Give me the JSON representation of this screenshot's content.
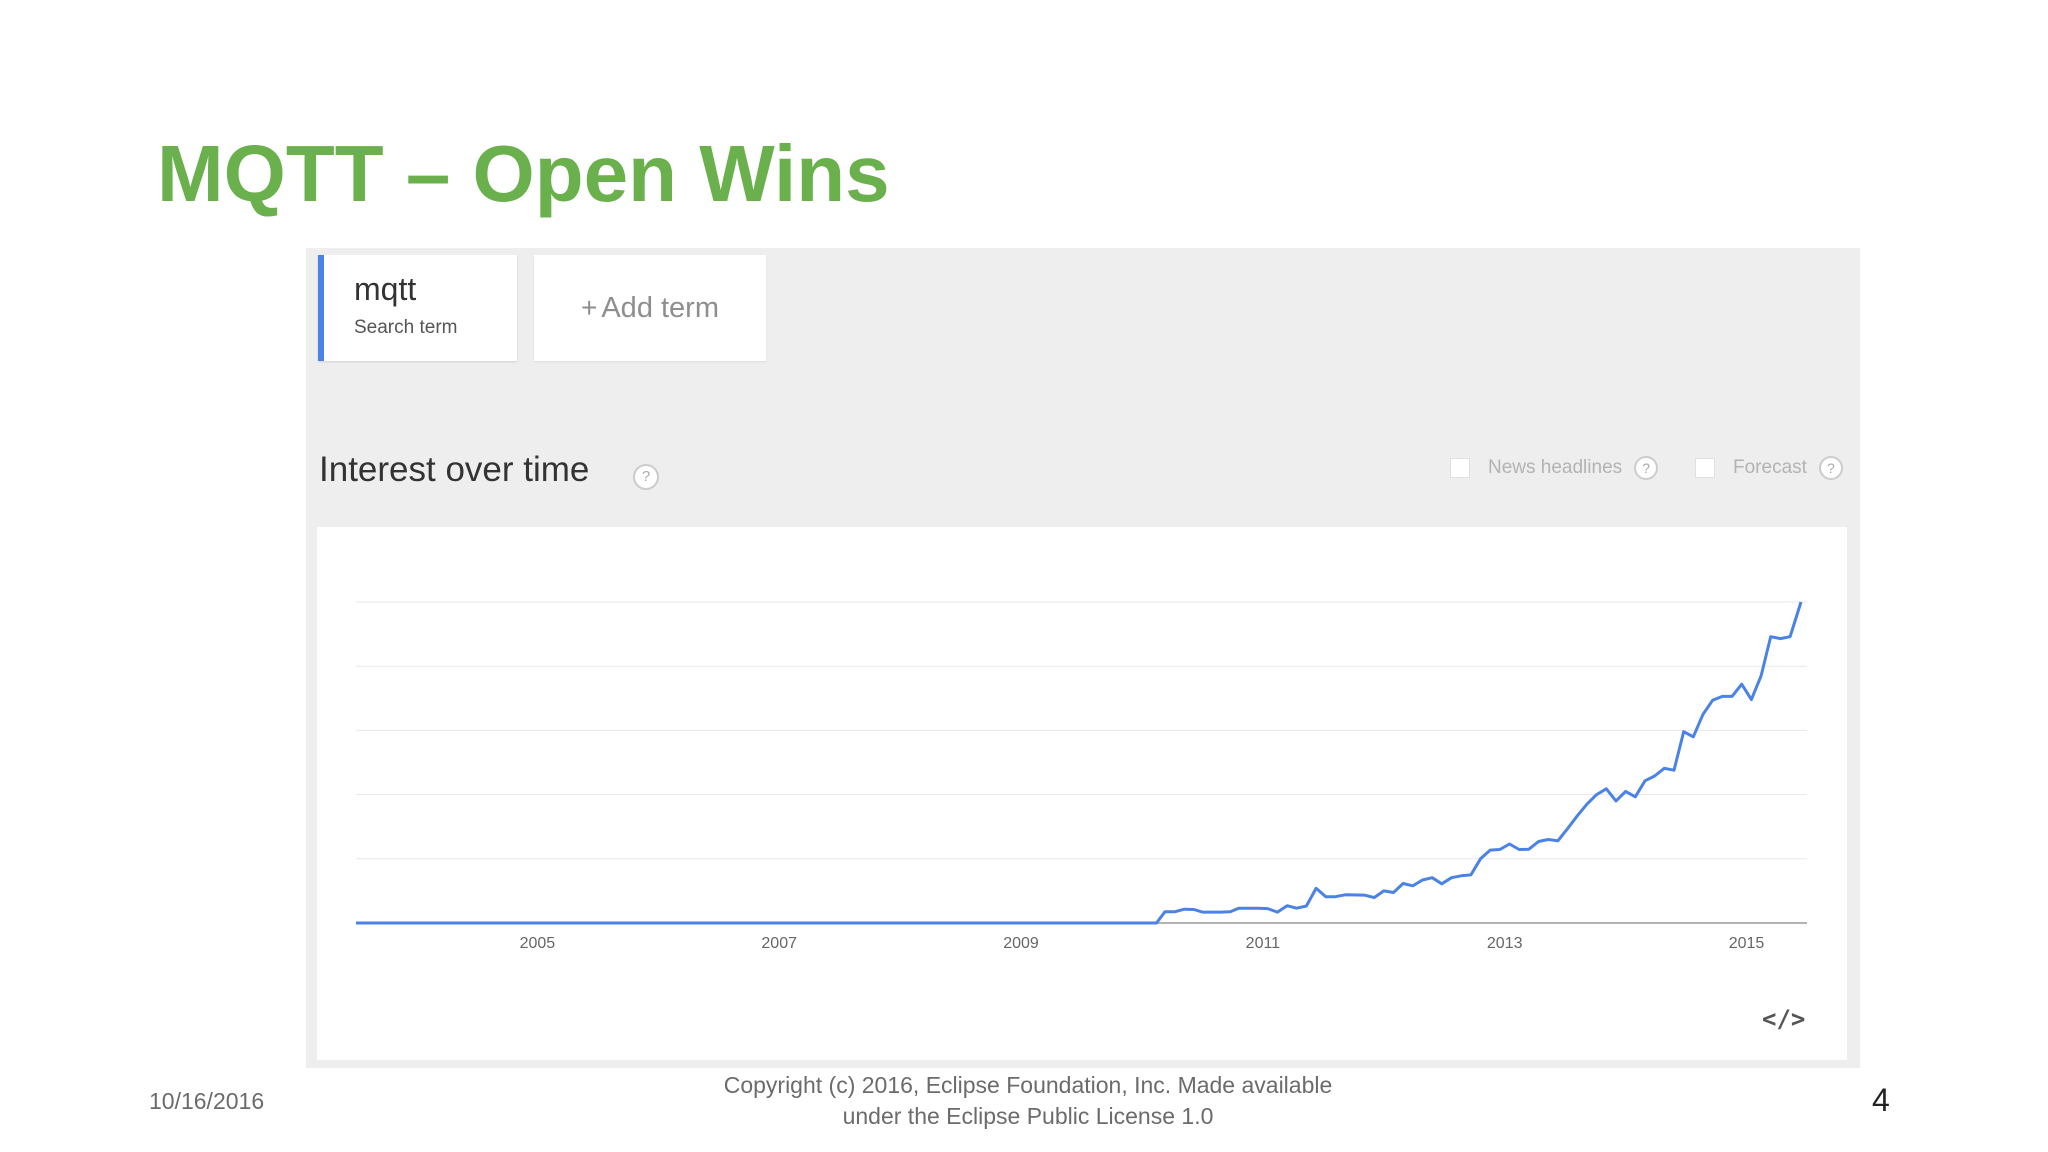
{
  "slide": {
    "title": "MQTT – Open Wins",
    "date": "10/16/2016",
    "copyright_line1": "Copyright (c) 2016, Eclipse Foundation, Inc. Made available",
    "copyright_line2": "under the Eclipse Public License 1.0",
    "page_number": "4"
  },
  "terms": {
    "primary": {
      "name": "mqtt",
      "subtitle": "Search term",
      "color": "#4a82e6"
    },
    "add_plus": "+",
    "add_label": "Add term"
  },
  "section": {
    "title": "Interest over time",
    "help_glyph": "?",
    "options": [
      {
        "label": "News headlines",
        "checked": false
      },
      {
        "label": "Forecast",
        "checked": false
      }
    ]
  },
  "embed": {
    "glyph": "</>",
    "icon": "embed-code-icon"
  },
  "colors": {
    "title": "#6ab04c",
    "line": "#4a82e6"
  },
  "chart_data": {
    "type": "line",
    "title": "",
    "xlabel": "",
    "ylabel": "",
    "x_ticks": [
      "2005",
      "2007",
      "2009",
      "2011",
      "2013",
      "2015"
    ],
    "xlim": [
      2004.0,
      2016.0
    ],
    "ylim": [
      0,
      100
    ],
    "grid": true,
    "legend": "none",
    "series": [
      {
        "values": [
          [
            2004.0,
            0
          ],
          [
            2010.62,
            0
          ],
          [
            2010.69,
            3.5
          ],
          [
            2010.77,
            3.5
          ],
          [
            2010.85,
            4.3
          ],
          [
            2010.93,
            4.2
          ],
          [
            2011.0,
            3.4
          ],
          [
            2011.15,
            3.4
          ],
          [
            2011.23,
            3.5
          ],
          [
            2011.3,
            4.6
          ],
          [
            2011.46,
            4.6
          ],
          [
            2011.54,
            4.5
          ],
          [
            2011.62,
            3.4
          ],
          [
            2011.7,
            5.4
          ],
          [
            2011.78,
            4.6
          ],
          [
            2011.86,
            5.3
          ],
          [
            2011.94,
            10.8
          ],
          [
            2012.02,
            8.2
          ],
          [
            2012.1,
            8.2
          ],
          [
            2012.18,
            8.8
          ],
          [
            2012.34,
            8.7
          ],
          [
            2012.42,
            7.9
          ],
          [
            2012.5,
            10.0
          ],
          [
            2012.58,
            9.5
          ],
          [
            2012.66,
            12.3
          ],
          [
            2012.74,
            11.6
          ],
          [
            2012.82,
            13.4
          ],
          [
            2012.9,
            14.1
          ],
          [
            2012.98,
            12.2
          ],
          [
            2013.06,
            14.1
          ],
          [
            2013.14,
            14.7
          ],
          [
            2013.22,
            15.0
          ],
          [
            2013.3,
            20.0
          ],
          [
            2013.38,
            22.7
          ],
          [
            2013.46,
            22.9
          ],
          [
            2013.54,
            24.6
          ],
          [
            2013.62,
            22.9
          ],
          [
            2013.7,
            23.0
          ],
          [
            2013.78,
            25.4
          ],
          [
            2013.86,
            26.0
          ],
          [
            2013.94,
            25.6
          ],
          [
            2014.02,
            29.4
          ],
          [
            2014.1,
            33.4
          ],
          [
            2014.18,
            37.0
          ],
          [
            2014.26,
            40.0
          ],
          [
            2014.34,
            41.8
          ],
          [
            2014.42,
            38.0
          ],
          [
            2014.5,
            41.0
          ],
          [
            2014.58,
            39.3
          ],
          [
            2014.66,
            44.3
          ],
          [
            2014.74,
            45.8
          ],
          [
            2014.82,
            48.2
          ],
          [
            2014.9,
            47.6
          ],
          [
            2014.98,
            59.6
          ],
          [
            2015.06,
            58.0
          ],
          [
            2015.14,
            65.0
          ],
          [
            2015.22,
            69.4
          ],
          [
            2015.3,
            70.6
          ],
          [
            2015.38,
            70.6
          ],
          [
            2015.46,
            74.4
          ],
          [
            2015.54,
            69.6
          ],
          [
            2015.62,
            77.0
          ],
          [
            2015.7,
            89.2
          ],
          [
            2015.78,
            88.6
          ],
          [
            2015.86,
            89.2
          ],
          [
            2015.95,
            100.0
          ]
        ]
      }
    ]
  }
}
